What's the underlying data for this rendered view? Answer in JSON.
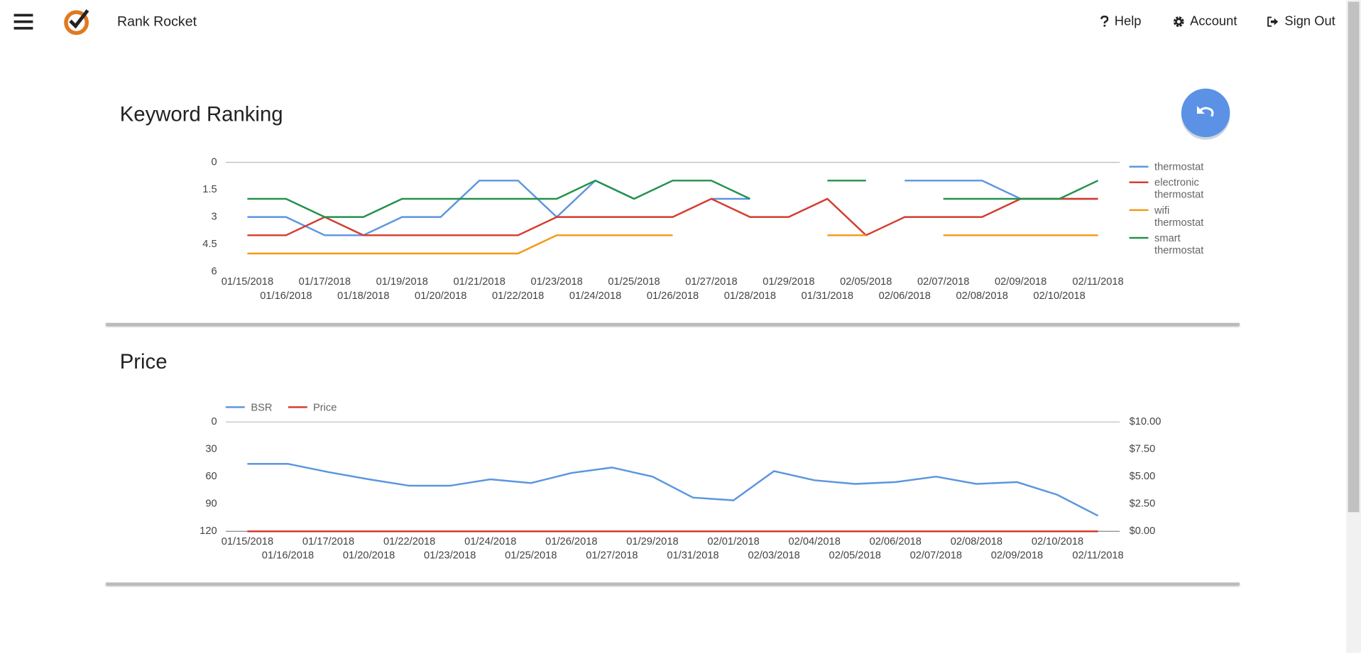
{
  "header": {
    "app_name": "Rank Rocket",
    "nav": [
      "Help",
      "Account",
      "Sign Out"
    ]
  },
  "chart_data": [
    {
      "type": "line",
      "title": "Keyword Ranking",
      "categories": [
        "01/15/2018",
        "01/16/2018",
        "01/17/2018",
        "01/18/2018",
        "01/19/2018",
        "01/20/2018",
        "01/21/2018",
        "01/22/2018",
        "01/23/2018",
        "01/24/2018",
        "01/25/2018",
        "01/26/2018",
        "01/27/2018",
        "01/28/2018",
        "01/29/2018",
        "01/31/2018",
        "02/05/2018",
        "02/06/2018",
        "02/07/2018",
        "02/08/2018",
        "02/09/2018",
        "02/10/2018",
        "02/11/2018"
      ],
      "series": [
        {
          "name": "thermostat",
          "color": "#5b95e0",
          "values": [
            3,
            3,
            4,
            4,
            3,
            3,
            1,
            1,
            3,
            1,
            2,
            null,
            2,
            2,
            null,
            null,
            null,
            1,
            1,
            1,
            2,
            2,
            2
          ]
        },
        {
          "name": "electronic thermostat",
          "color": "#d43c2f",
          "values": [
            4,
            4,
            3,
            4,
            4,
            4,
            4,
            4,
            3,
            3,
            3,
            3,
            2,
            3,
            3,
            2,
            4,
            3,
            3,
            3,
            2,
            2,
            2
          ]
        },
        {
          "name": "wifi thermostat",
          "color": "#f29a16",
          "values": [
            5,
            5,
            5,
            5,
            5,
            5,
            5,
            5,
            4,
            4,
            4,
            4,
            null,
            null,
            null,
            4,
            4,
            null,
            4,
            4,
            4,
            4,
            4
          ]
        },
        {
          "name": "smart thermostat",
          "color": "#23914c",
          "values": [
            2,
            2,
            3,
            3,
            2,
            2,
            2,
            2,
            2,
            1,
            2,
            1,
            1,
            2,
            null,
            1,
            1,
            null,
            2,
            2,
            2,
            2,
            1
          ]
        }
      ],
      "ylim": [
        0,
        6
      ],
      "yticks": [
        0,
        1.5,
        3,
        4.5,
        6
      ],
      "y_reversed": true,
      "grid": false,
      "legend": "right"
    },
    {
      "type": "line",
      "title": "Price",
      "categories": [
        "01/15/2018",
        "01/16/2018",
        "01/17/2018",
        "01/20/2018",
        "01/22/2018",
        "01/23/2018",
        "01/24/2018",
        "01/25/2018",
        "01/26/2018",
        "01/27/2018",
        "01/29/2018",
        "01/31/2018",
        "02/01/2018",
        "02/03/2018",
        "02/04/2018",
        "02/05/2018",
        "02/06/2018",
        "02/07/2018",
        "02/08/2018",
        "02/09/2018",
        "02/10/2018",
        "02/11/2018"
      ],
      "series": [
        {
          "name": "BSR",
          "color": "#5b95e0",
          "values": [
            46,
            46,
            55,
            63,
            70,
            70,
            63,
            67,
            56,
            50,
            60,
            83,
            86,
            54,
            64,
            68,
            66,
            60,
            68,
            66,
            80,
            103
          ]
        },
        {
          "name": "Price",
          "color": "#d43c2f",
          "axis": "y2",
          "values": [
            0,
            0,
            0,
            0,
            0,
            0,
            0,
            0,
            0,
            0,
            0,
            0,
            0,
            0,
            0,
            0,
            0,
            0,
            0,
            0,
            0,
            0
          ]
        }
      ],
      "ylim": [
        0,
        120
      ],
      "yticks": [
        0,
        30,
        60,
        90,
        120
      ],
      "y_reversed": true,
      "y2lim": [
        0,
        10
      ],
      "y2ticks": [
        {
          "value": 10,
          "label": "$10.00"
        },
        {
          "value": 7.5,
          "label": "$7.50"
        },
        {
          "value": 5,
          "label": "$5.00"
        },
        {
          "value": 2.5,
          "label": "$2.50"
        },
        {
          "value": 0,
          "label": "$0.00"
        }
      ],
      "grid": false,
      "legend": "top-left"
    }
  ]
}
